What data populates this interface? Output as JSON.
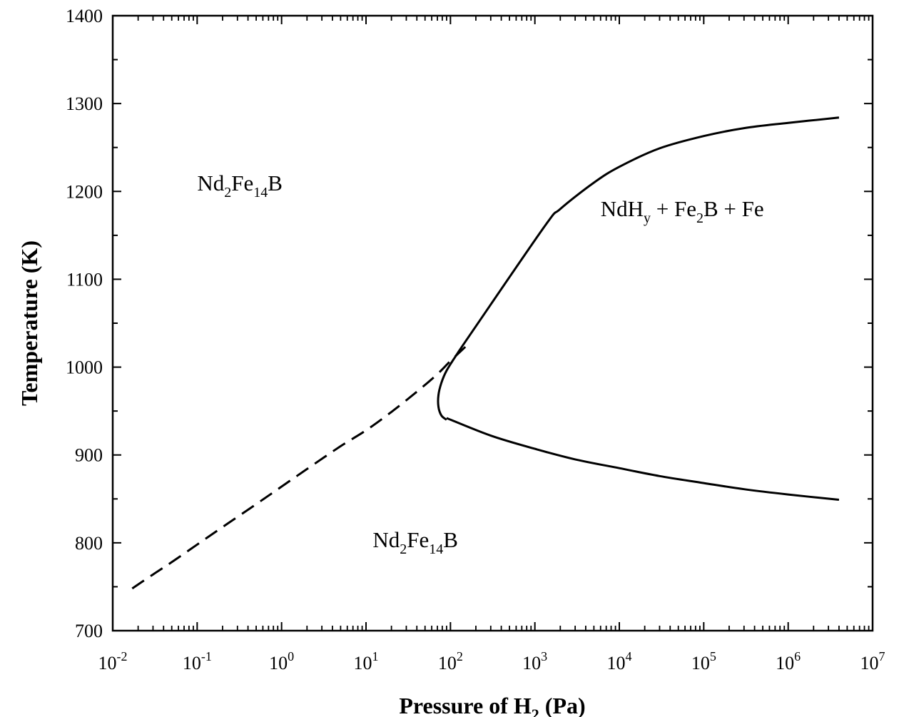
{
  "chart_data": {
    "type": "line",
    "xlabel": {
      "pre": "Pressure of H",
      "sub": "2",
      "post": " (Pa)"
    },
    "ylabel": "Temperature (K)",
    "xscale": "log",
    "xlim": [
      0.01,
      10000000
    ],
    "ylim": [
      700,
      1400
    ],
    "xticks": [
      {
        "base": "10",
        "exp": "-2"
      },
      {
        "base": "10",
        "exp": "-1"
      },
      {
        "base": "10",
        "exp": "0"
      },
      {
        "base": "10",
        "exp": "1"
      },
      {
        "base": "10",
        "exp": "2"
      },
      {
        "base": "10",
        "exp": "3"
      },
      {
        "base": "10",
        "exp": "4"
      },
      {
        "base": "10",
        "exp": "5"
      },
      {
        "base": "10",
        "exp": "6"
      },
      {
        "base": "10",
        "exp": "7"
      }
    ],
    "yticks": [
      "700",
      "800",
      "900",
      "1000",
      "1100",
      "1200",
      "1300",
      "1400"
    ],
    "grid": false,
    "series": [
      {
        "style": "dashed",
        "x": [
          0.017,
          0.03,
          0.05,
          0.1,
          0.2,
          0.5,
          1,
          2,
          5,
          10,
          20,
          40,
          70,
          100,
          150
        ],
        "y": [
          748,
          764,
          778,
          798,
          818,
          844,
          864,
          884,
          910,
          928,
          949,
          972,
          992,
          1007,
          1023
        ]
      },
      {
        "style": "solid",
        "x": [
          90,
          78,
          72,
          72,
          78,
          90,
          120,
          180,
          1300,
          2000,
          5000,
          10000,
          30000,
          100000,
          300000,
          1000000,
          4000000
        ],
        "y": [
          940,
          945,
          955,
          968,
          982,
          996,
          1015,
          1040,
          1160,
          1180,
          1210,
          1228,
          1249,
          1263,
          1272,
          1278,
          1284
        ]
      },
      {
        "style": "solid",
        "x": [
          90,
          300,
          1000,
          3000,
          10000,
          30000,
          100000,
          300000,
          1000000,
          4000000
        ],
        "y": [
          942,
          922,
          907,
          895,
          885,
          876,
          868,
          861,
          855,
          849
        ]
      }
    ],
    "annotations": [
      {
        "parts": [
          {
            "t": "Nd"
          },
          {
            "t": "2",
            "sub": true
          },
          {
            "t": "Fe"
          },
          {
            "t": "14",
            "sub": true
          },
          {
            "t": "B"
          }
        ],
        "x": 0.1,
        "y": 1201
      },
      {
        "parts": [
          {
            "t": "Nd"
          },
          {
            "t": "2",
            "sub": true
          },
          {
            "t": "Fe"
          },
          {
            "t": "14",
            "sub": true
          },
          {
            "t": "B"
          }
        ],
        "x": 12,
        "y": 795
      },
      {
        "parts": [
          {
            "t": "NdH"
          },
          {
            "t": "y",
            "sub": true
          },
          {
            "t": " + Fe"
          },
          {
            "t": "2",
            "sub": true
          },
          {
            "t": "B + Fe"
          }
        ],
        "x": 6000,
        "y": 1172
      }
    ]
  }
}
